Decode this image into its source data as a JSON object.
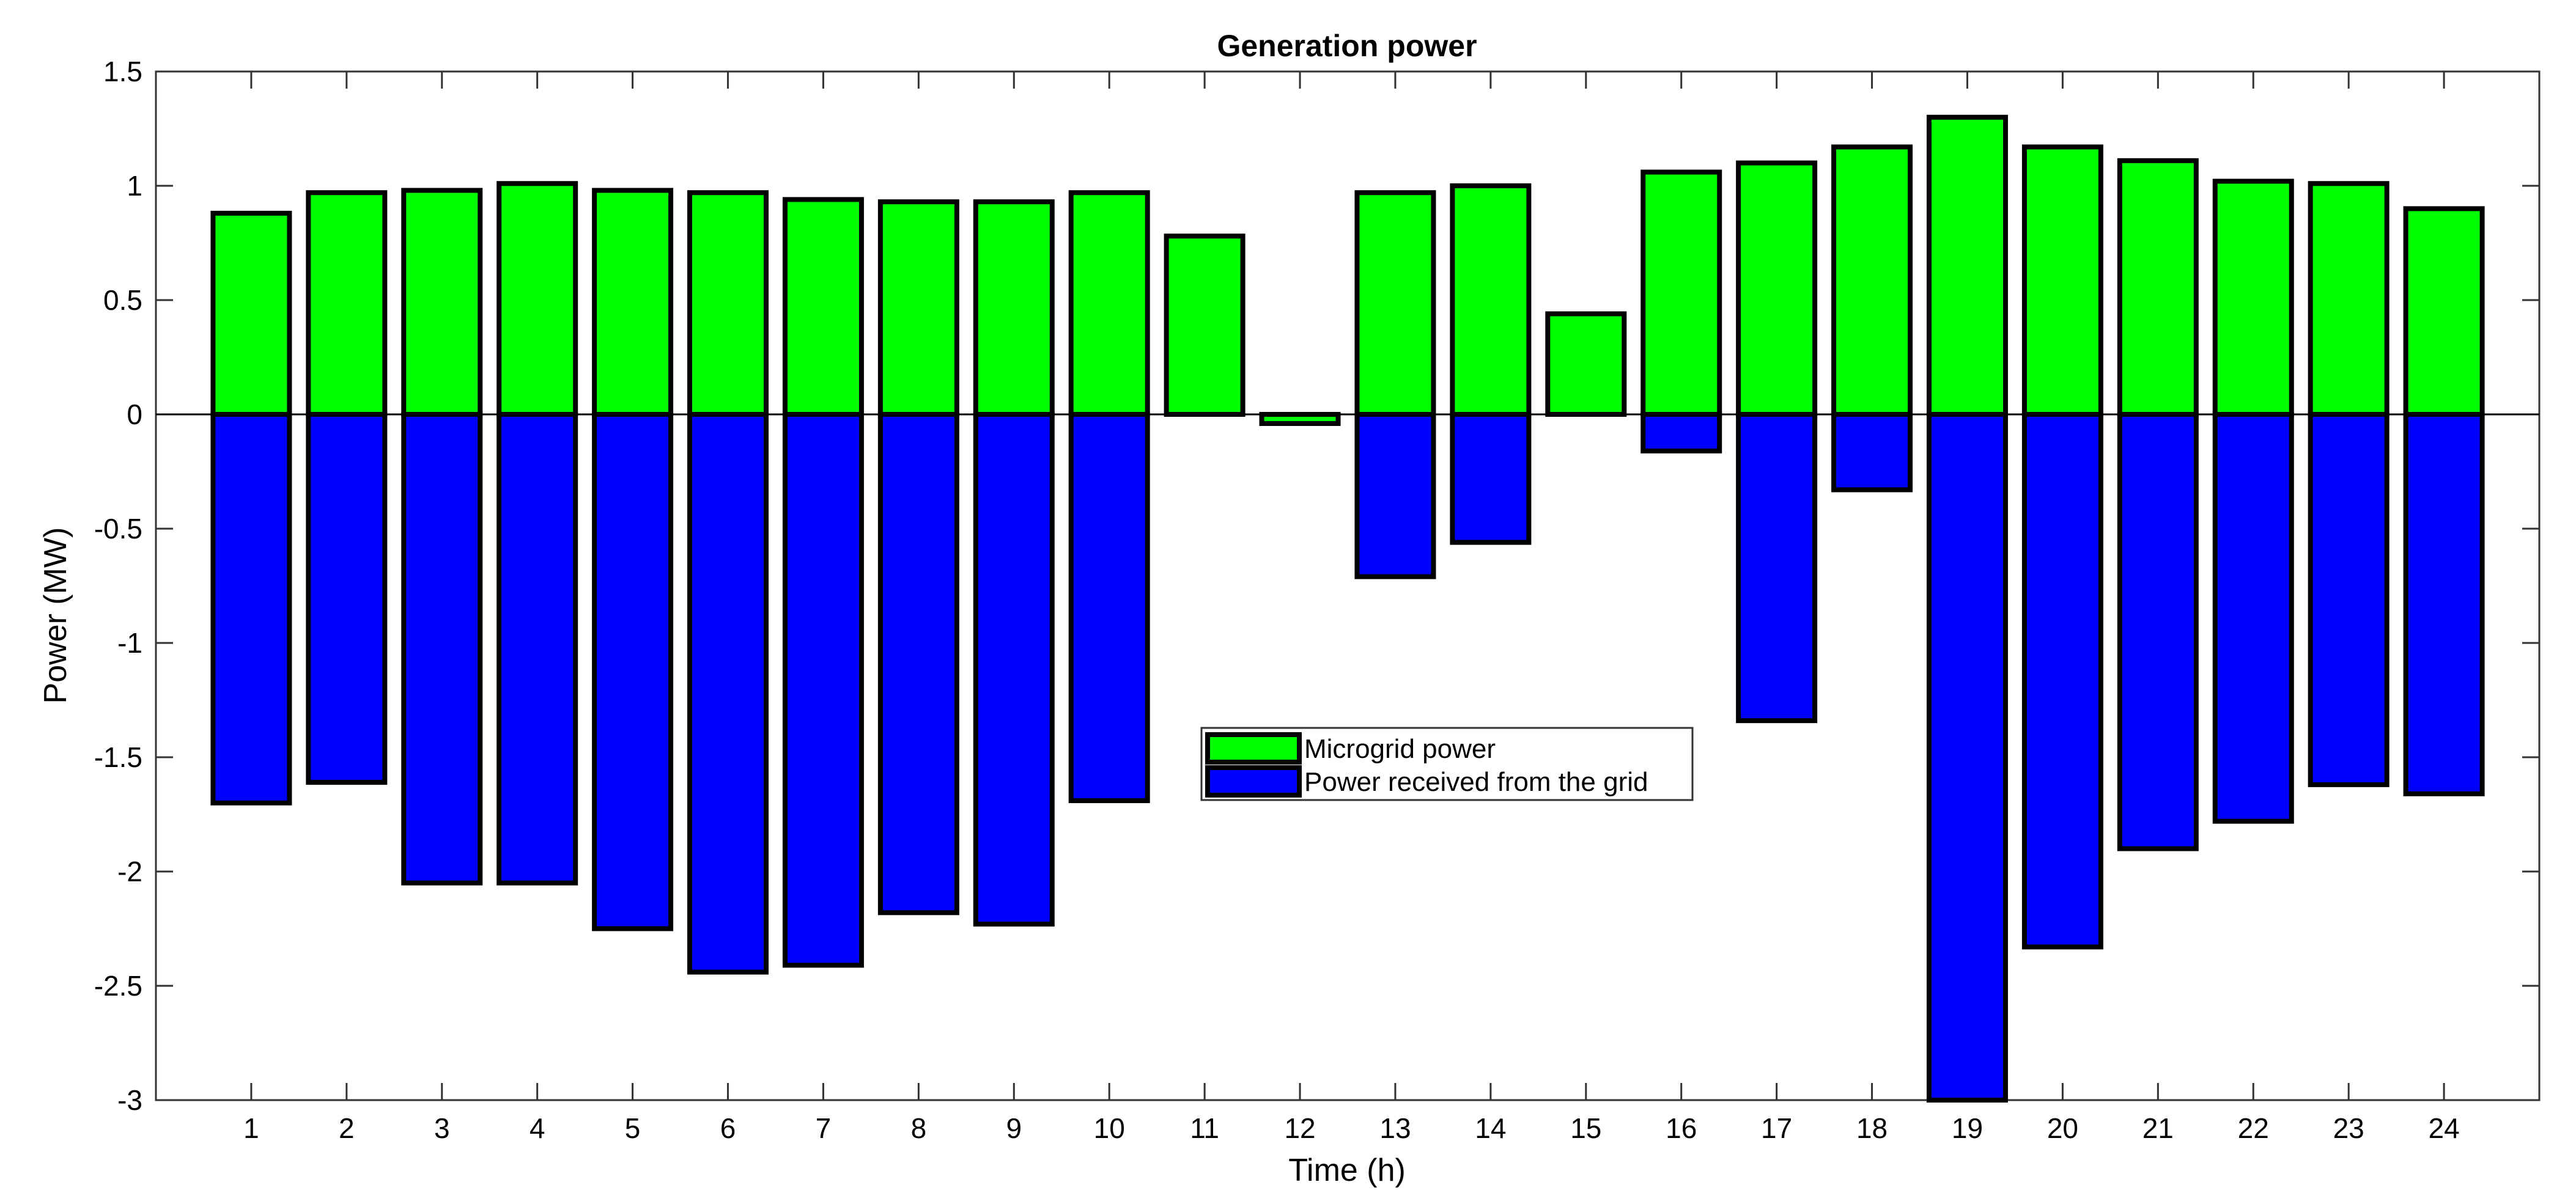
{
  "chart_data": {
    "type": "bar",
    "stacked": true,
    "title": "Generation power",
    "xlabel": "Time (h)",
    "ylabel": "Power (MW)",
    "categories": [
      "1",
      "2",
      "3",
      "4",
      "5",
      "6",
      "7",
      "8",
      "9",
      "10",
      "11",
      "12",
      "13",
      "14",
      "15",
      "16",
      "17",
      "18",
      "19",
      "20",
      "21",
      "22",
      "23",
      "24"
    ],
    "ylim": [
      -3,
      1.5
    ],
    "yticks": [
      1.5,
      1,
      0.5,
      0,
      -0.5,
      -1,
      -1.5,
      -2,
      -2.5,
      -3
    ],
    "ytick_labels": [
      "1.5",
      "1",
      "0.5",
      "0",
      "-0.5",
      "-1",
      "-1.5",
      "-2",
      "-2.5",
      "-3"
    ],
    "series": [
      {
        "name": "Microgrid power",
        "color": "#00ff00",
        "values": [
          0.88,
          0.97,
          0.98,
          1.01,
          0.98,
          0.97,
          0.94,
          0.93,
          0.93,
          0.97,
          0.78,
          -0.04,
          0.97,
          1.0,
          0.44,
          1.06,
          1.1,
          1.17,
          1.3,
          1.17,
          1.11,
          1.02,
          1.01,
          0.9
        ]
      },
      {
        "name": "Power received from the grid",
        "color": "#0000ff",
        "values": [
          -1.7,
          -1.61,
          -2.05,
          -2.05,
          -2.25,
          -2.44,
          -2.41,
          -2.18,
          -2.23,
          -1.69,
          0,
          0,
          -0.71,
          -0.56,
          0,
          -0.16,
          -1.34,
          -0.33,
          -3.0,
          -2.33,
          -1.9,
          -1.78,
          -1.62,
          -1.66
        ]
      }
    ],
    "legend": {
      "position": "center",
      "entries": [
        "Microgrid power",
        "Power received from the grid"
      ]
    },
    "grid": false
  }
}
